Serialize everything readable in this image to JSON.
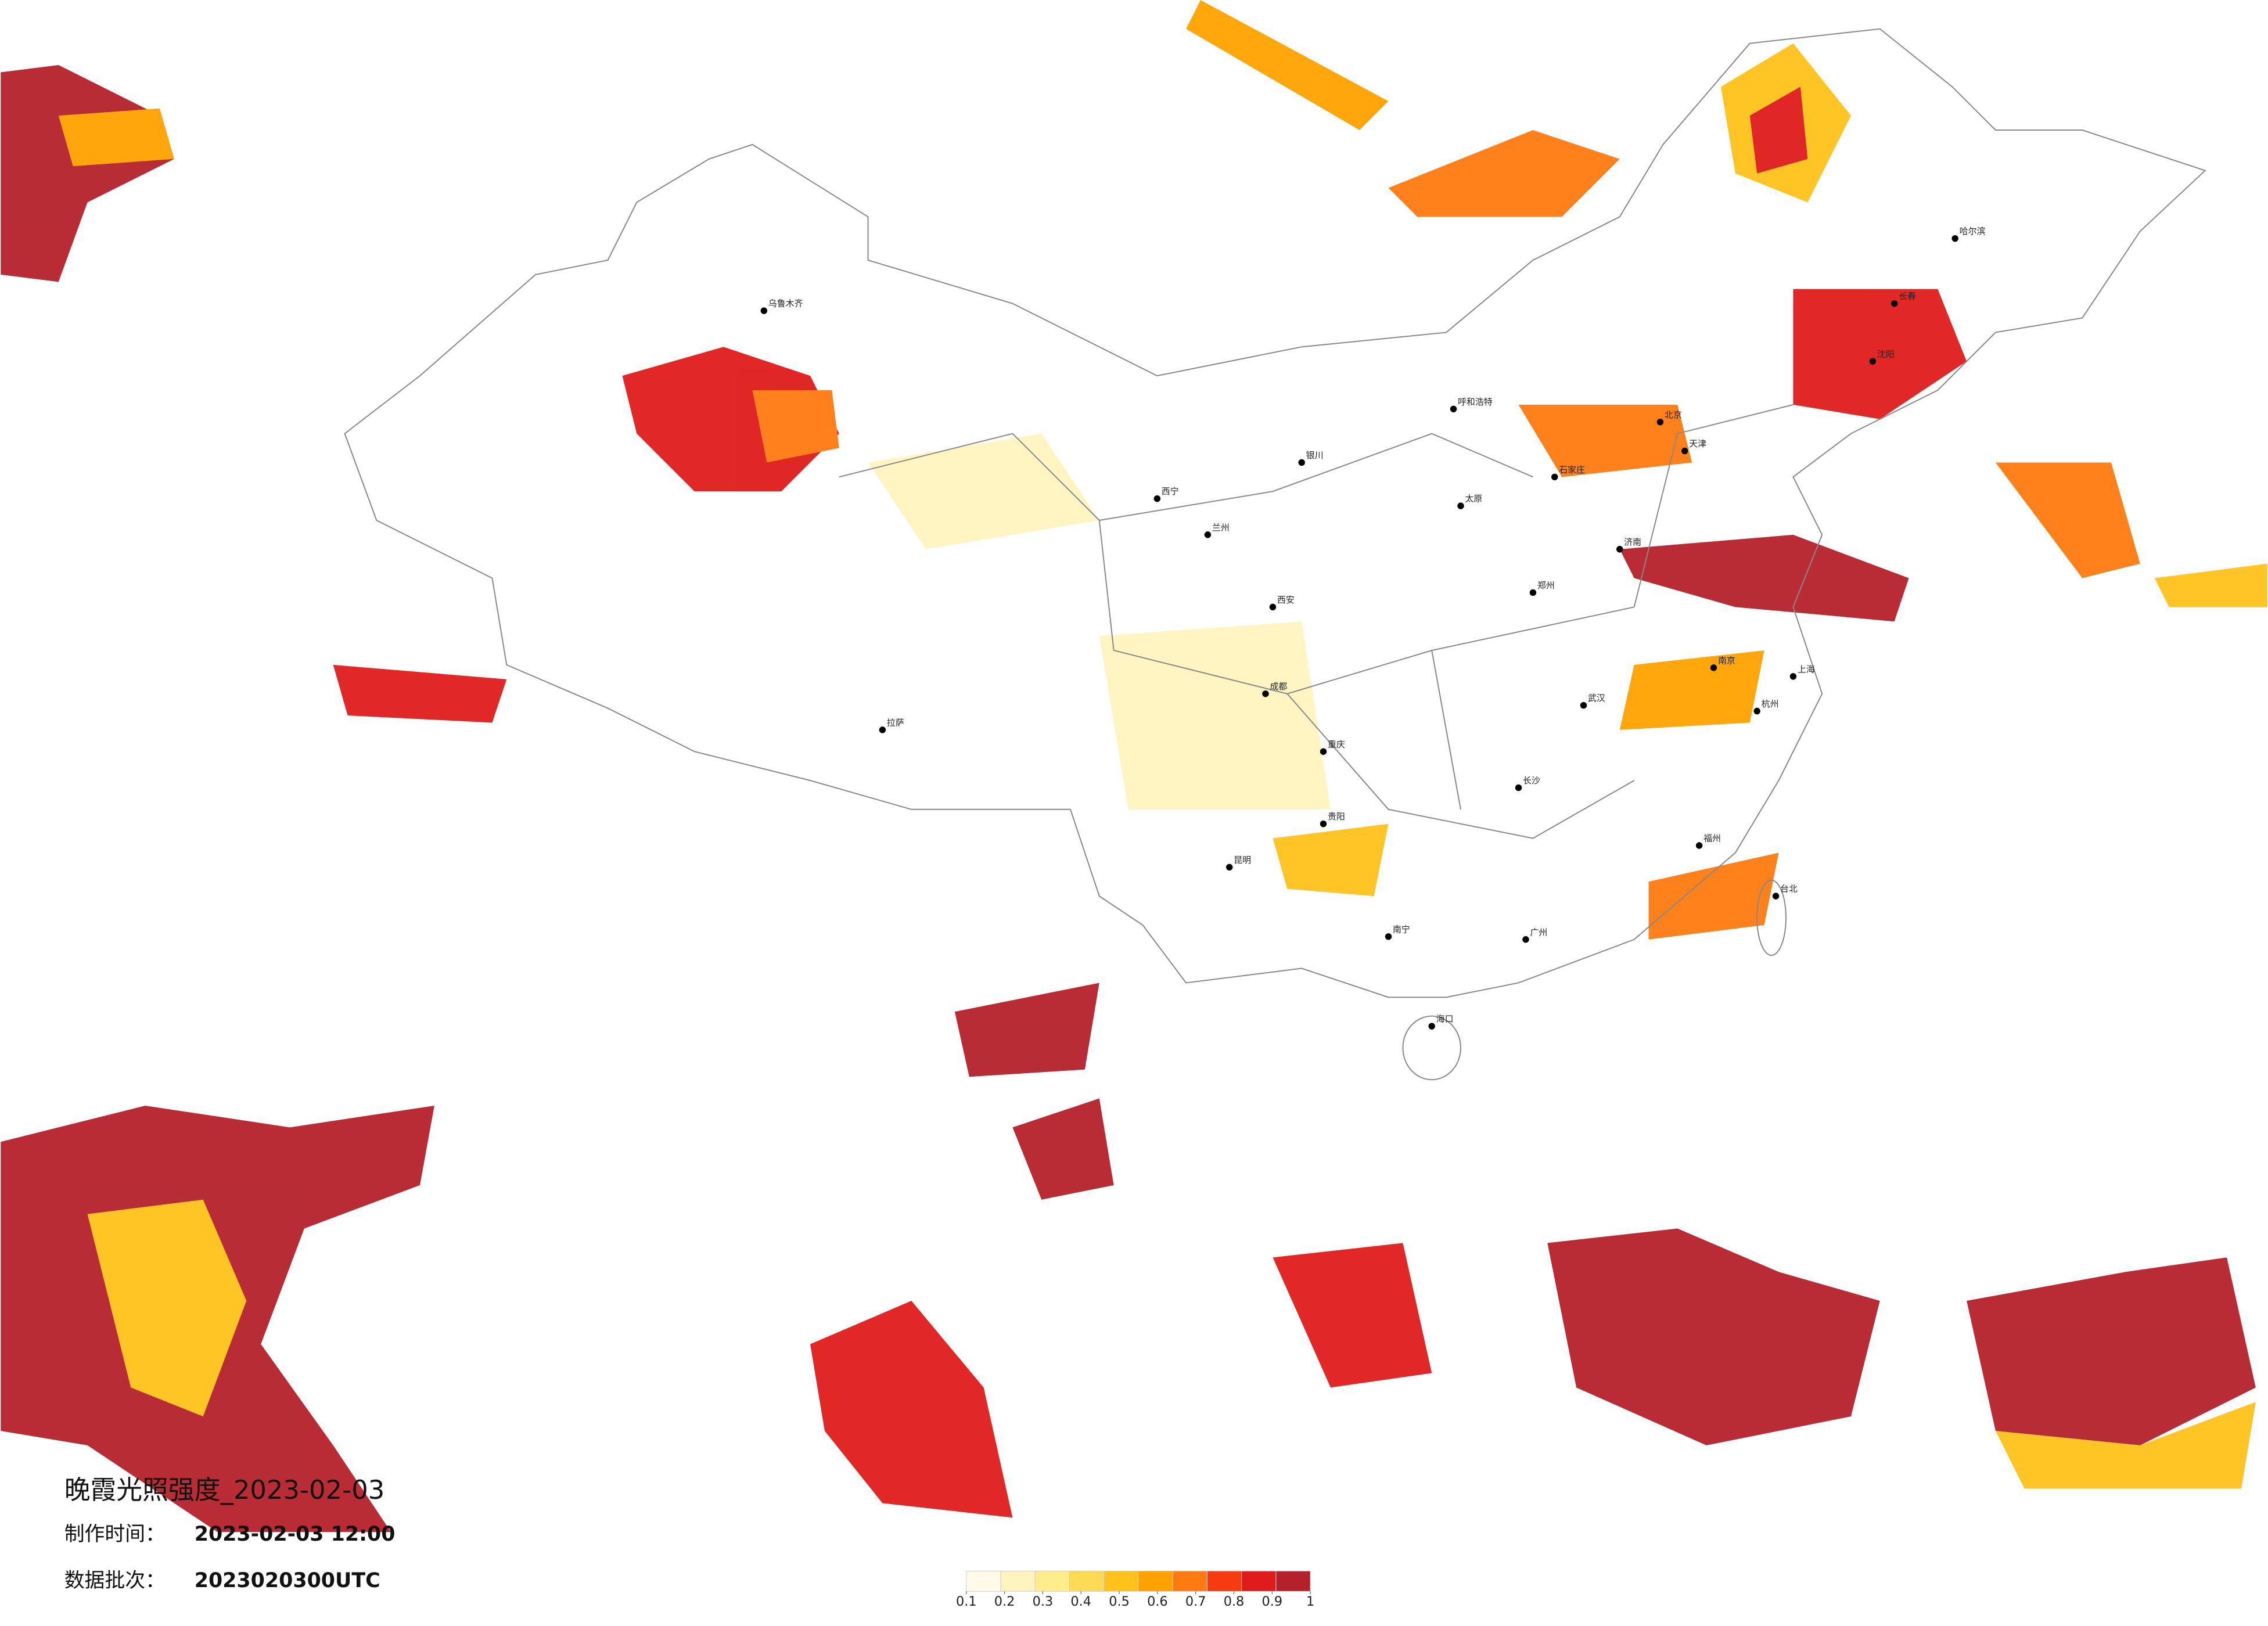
{
  "title": "晚霞光照强度_2023-02-03",
  "made_label": "制作时间：",
  "made_time": "2023-02-03 12:00",
  "batch_label": "数据批次：",
  "batch": "2023020300UTC",
  "legend": {
    "colors": [
      "#fffbe8",
      "#fff4c0",
      "#ffec8a",
      "#ffda55",
      "#ffc21a",
      "#ffa200",
      "#ff7a10",
      "#f83a10",
      "#e01b1b",
      "#b5212b"
    ],
    "ticks": [
      0.1,
      0.2,
      0.3,
      0.4,
      0.5,
      0.6,
      0.7,
      0.8,
      0.9,
      1
    ]
  },
  "cities": [
    {
      "name": "北京"
    },
    {
      "name": "天津"
    },
    {
      "name": "上海"
    },
    {
      "name": "南京"
    },
    {
      "name": "武汉"
    },
    {
      "name": "长沙"
    },
    {
      "name": "广州"
    },
    {
      "name": "重庆"
    },
    {
      "name": "成都"
    },
    {
      "name": "西安"
    },
    {
      "name": "郑州"
    },
    {
      "name": "沈阳"
    },
    {
      "name": "长春"
    },
    {
      "name": "哈尔滨"
    },
    {
      "name": "呼和浩特"
    },
    {
      "name": "兰州"
    },
    {
      "name": "西宁"
    },
    {
      "name": "拉萨"
    },
    {
      "name": "乌鲁木齐"
    },
    {
      "name": "昆明"
    },
    {
      "name": "贵阳"
    },
    {
      "name": "南宁"
    },
    {
      "name": "海口"
    },
    {
      "name": "福州"
    },
    {
      "name": "杭州"
    },
    {
      "name": "济南"
    },
    {
      "name": "太原"
    },
    {
      "name": "石家庄"
    },
    {
      "name": "银川"
    },
    {
      "name": "台北"
    }
  ]
}
